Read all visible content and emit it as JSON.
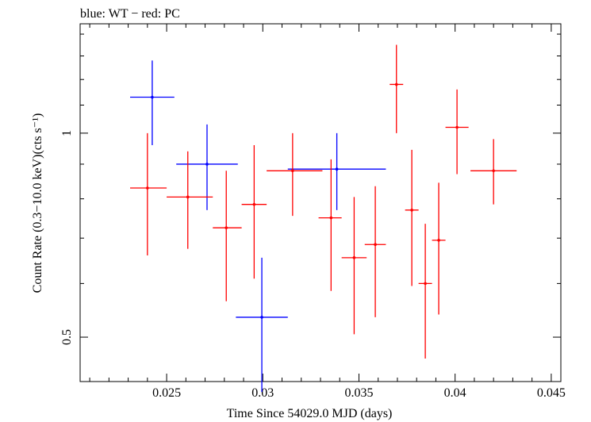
{
  "chart_data": {
    "type": "scatter",
    "title": "blue: WT − red: PC",
    "xlabel": "Time Since 54029.0 MJD (days)",
    "ylabel": "Count Rate (0.3−10.0 keV)(cts s⁻¹)",
    "xlim": [
      0.0205,
      0.0455
    ],
    "ylim": [
      0.43,
      1.45
    ],
    "y_scale": "log",
    "x_ticks": [
      {
        "value": 0.025,
        "label": "0.025"
      },
      {
        "value": 0.03,
        "label": "0.03"
      },
      {
        "value": 0.035,
        "label": "0.035"
      },
      {
        "value": 0.04,
        "label": "0.04"
      },
      {
        "value": 0.045,
        "label": "0.045"
      }
    ],
    "y_ticks": [
      {
        "value": 0.5,
        "label": "0.5"
      },
      {
        "value": 1,
        "label": "1"
      }
    ],
    "series": [
      {
        "key": "wt",
        "color": "#0000ff",
        "points": [
          {
            "x": 0.02425,
            "y": 1.13,
            "x_lo": 0.0231,
            "x_hi": 0.0254,
            "y_lo": 0.96,
            "y_hi": 1.28
          },
          {
            "x": 0.0271,
            "y": 0.9,
            "x_lo": 0.0255,
            "x_hi": 0.0287,
            "y_lo": 0.77,
            "y_hi": 1.03
          },
          {
            "x": 0.02995,
            "y": 0.535,
            "x_lo": 0.0286,
            "x_hi": 0.0313,
            "y_lo": 0.415,
            "y_hi": 0.655
          },
          {
            "x": 0.03385,
            "y": 0.885,
            "x_lo": 0.0313,
            "x_hi": 0.0364,
            "y_lo": 0.77,
            "y_hi": 1.0
          }
        ]
      },
      {
        "key": "pc",
        "color": "#ff0000",
        "points": [
          {
            "x": 0.024,
            "y": 0.83,
            "x_lo": 0.0231,
            "x_hi": 0.025,
            "y_lo": 0.66,
            "y_hi": 1.0
          },
          {
            "x": 0.0261,
            "y": 0.805,
            "x_lo": 0.025,
            "x_hi": 0.0274,
            "y_lo": 0.675,
            "y_hi": 0.94
          },
          {
            "x": 0.0281,
            "y": 0.725,
            "x_lo": 0.0274,
            "x_hi": 0.0289,
            "y_lo": 0.565,
            "y_hi": 0.88
          },
          {
            "x": 0.02955,
            "y": 0.785,
            "x_lo": 0.0289,
            "x_hi": 0.0302,
            "y_lo": 0.61,
            "y_hi": 0.96
          },
          {
            "x": 0.03155,
            "y": 0.88,
            "x_lo": 0.0302,
            "x_hi": 0.0331,
            "y_lo": 0.755,
            "y_hi": 1.0
          },
          {
            "x": 0.03355,
            "y": 0.75,
            "x_lo": 0.0329,
            "x_hi": 0.0341,
            "y_lo": 0.585,
            "y_hi": 0.915
          },
          {
            "x": 0.03475,
            "y": 0.655,
            "x_lo": 0.0341,
            "x_hi": 0.0354,
            "y_lo": 0.505,
            "y_hi": 0.805
          },
          {
            "x": 0.03585,
            "y": 0.685,
            "x_lo": 0.0353,
            "x_hi": 0.0364,
            "y_lo": 0.535,
            "y_hi": 0.835
          },
          {
            "x": 0.03695,
            "y": 1.18,
            "x_lo": 0.0366,
            "x_hi": 0.0373,
            "y_lo": 1.0,
            "y_hi": 1.35
          },
          {
            "x": 0.03775,
            "y": 0.77,
            "x_lo": 0.0374,
            "x_hi": 0.0381,
            "y_lo": 0.595,
            "y_hi": 0.945
          },
          {
            "x": 0.03845,
            "y": 0.6,
            "x_lo": 0.0381,
            "x_hi": 0.0388,
            "y_lo": 0.465,
            "y_hi": 0.735
          },
          {
            "x": 0.03915,
            "y": 0.695,
            "x_lo": 0.0388,
            "x_hi": 0.0395,
            "y_lo": 0.54,
            "y_hi": 0.845
          },
          {
            "x": 0.0401,
            "y": 1.02,
            "x_lo": 0.0395,
            "x_hi": 0.0407,
            "y_lo": 0.87,
            "y_hi": 1.16
          },
          {
            "x": 0.042,
            "y": 0.88,
            "x_lo": 0.0408,
            "x_hi": 0.0432,
            "y_lo": 0.785,
            "y_hi": 0.98
          }
        ]
      }
    ]
  }
}
